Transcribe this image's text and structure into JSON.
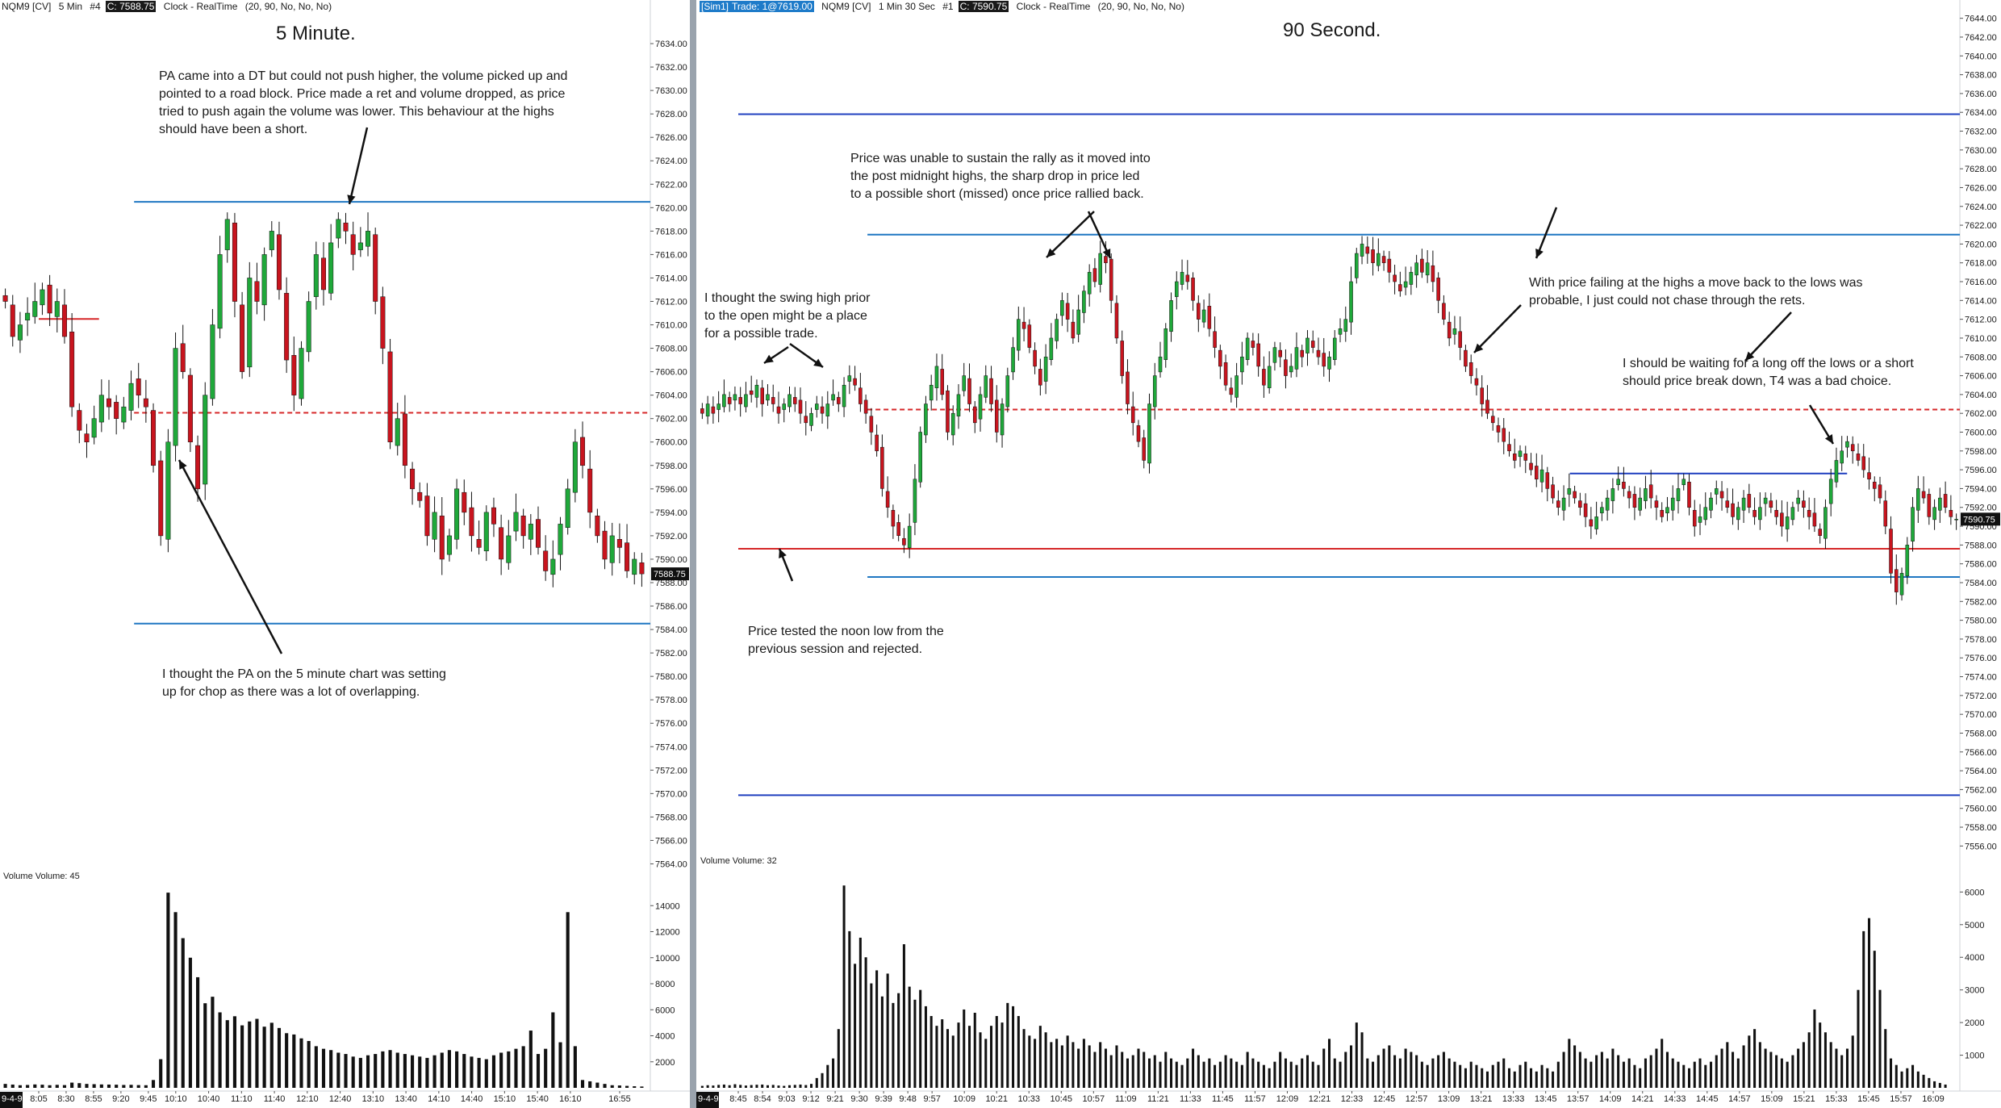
{
  "chart_data": [
    {
      "type": "candlestick",
      "header": {
        "instrument": "NQM9 [CV]",
        "interval": "5 Min",
        "bar_count": "#4",
        "last_price": "C: 7588.75",
        "clock": "Clock - RealTime",
        "params": "(20, 90, No, No, No)"
      },
      "title": "5 Minute.",
      "price_ticks": [
        "7634.00",
        "7632.00",
        "7630.00",
        "7628.00",
        "7626.00",
        "7624.00",
        "7622.00",
        "7620.00",
        "7618.00",
        "7616.00",
        "7614.00",
        "7612.00",
        "7610.00",
        "7608.00",
        "7606.00",
        "7604.00",
        "7602.00",
        "7600.00",
        "7598.00",
        "7596.00",
        "7594.00",
        "7592.00",
        "7590.00",
        "7588.00",
        "7586.00",
        "7584.00",
        "7582.00",
        "7580.00",
        "7578.00",
        "7576.00",
        "7574.00",
        "7572.00",
        "7570.00",
        "7568.00",
        "7566.00",
        "7564.00"
      ],
      "ylim": [
        7563,
        7636
      ],
      "last_price_label": "7588.75",
      "levels": [
        {
          "price": 7620.5,
          "color": "#1f77c2",
          "style": "solid",
          "from_time": "9:32"
        },
        {
          "price": 7584.5,
          "color": "#1f77c2",
          "style": "solid",
          "from_time": "9:32"
        },
        {
          "price": 7602.5,
          "color": "#d62728",
          "style": "dashed",
          "from_time": "9:32"
        },
        {
          "price": 7610.5,
          "color": "#d62728",
          "style": "solid",
          "from_time": "8:05",
          "to_time": "9:00"
        }
      ],
      "time_ticks": [
        "8:05",
        "8:30",
        "8:55",
        "9:20",
        "9:45",
        "10:10",
        "10:40",
        "11:10",
        "11:40",
        "12:10",
        "12:40",
        "13:10",
        "13:40",
        "14:10",
        "14:40",
        "15:10",
        "15:40",
        "16:10",
        "16:55"
      ],
      "date_label": "9-4-9",
      "volume_label": "Volume  Volume: 45",
      "volume_ticks": [
        "14000",
        "12000",
        "10000",
        "8000",
        "6000",
        "4000",
        "2000"
      ],
      "volume_max": 16000,
      "closes": [
        7612,
        7609,
        7610,
        7611,
        7612,
        7613,
        7611,
        7612,
        7609,
        7603,
        7601,
        7600,
        7602,
        7604,
        7603,
        7602,
        7603,
        7605,
        7604,
        7603,
        7598,
        7592,
        7600,
        7608,
        7606,
        7600,
        7596,
        7604,
        7610,
        7616,
        7619,
        7612,
        7606,
        7614,
        7612,
        7616,
        7618,
        7613,
        7607,
        7604,
        7608,
        7612,
        7616,
        7613,
        7617,
        7619,
        7618,
        7616,
        7617,
        7618,
        7612,
        7608,
        7600,
        7602,
        7598,
        7596,
        7595,
        7592,
        7594,
        7590,
        7592,
        7596,
        7594,
        7592,
        7591,
        7594,
        7593,
        7590,
        7592,
        7594,
        7592,
        7593,
        7591,
        7589,
        7590,
        7593,
        7596,
        7600,
        7598,
        7594,
        7592,
        7590,
        7592,
        7591,
        7589,
        7590,
        7588.75
      ],
      "volumes": [
        300,
        250,
        200,
        220,
        260,
        240,
        200,
        230,
        210,
        400,
        360,
        300,
        280,
        260,
        250,
        240,
        220,
        230,
        210,
        200,
        600,
        2200,
        15000,
        13500,
        11500,
        10000,
        8500,
        6500,
        7000,
        5800,
        5200,
        5500,
        4800,
        5100,
        5300,
        4700,
        5000,
        4600,
        4200,
        4100,
        3800,
        3600,
        3200,
        3000,
        2900,
        2700,
        2600,
        2400,
        2300,
        2500,
        2600,
        2800,
        2900,
        2700,
        2600,
        2500,
        2400,
        2300,
        2500,
        2700,
        2900,
        2800,
        2600,
        2400,
        2300,
        2200,
        2500,
        2700,
        2800,
        3000,
        3200,
        4400,
        2600,
        3000,
        5800,
        3500,
        13500,
        3200,
        600,
        500,
        400,
        300,
        200,
        180,
        150,
        120,
        100
      ]
    },
    {
      "type": "candlestick",
      "header": {
        "account": "[Sim1]",
        "trade": "Trade: 1@7619.00",
        "instrument": "NQM9 [CV]",
        "interval": "1 Min 30 Sec",
        "bar_count": "#1",
        "last_price": "C: 7590.75",
        "clock": "Clock - RealTime",
        "params": "(20, 90, No, No, No)"
      },
      "title": "90 Second.",
      "price_ticks": [
        "7644.00",
        "7642.00",
        "7640.00",
        "7638.00",
        "7636.00",
        "7634.00",
        "7632.00",
        "7630.00",
        "7628.00",
        "7626.00",
        "7624.00",
        "7622.00",
        "7620.00",
        "7618.00",
        "7616.00",
        "7614.00",
        "7612.00",
        "7610.00",
        "7608.00",
        "7606.00",
        "7604.00",
        "7602.00",
        "7600.00",
        "7598.00",
        "7596.00",
        "7594.00",
        "7592.00",
        "7590.00",
        "7588.00",
        "7586.00",
        "7584.00",
        "7582.00",
        "7580.00",
        "7578.00",
        "7576.00",
        "7574.00",
        "7572.00",
        "7570.00",
        "7568.00",
        "7566.00",
        "7564.00",
        "7562.00",
        "7560.00",
        "7558.00",
        "7556.00"
      ],
      "ylim": [
        7555,
        7645
      ],
      "last_price_label": "7590.75",
      "levels": [
        {
          "price": 7633.8,
          "color": "#1f3fbf",
          "style": "solid",
          "from_time": "8:45"
        },
        {
          "price": 7621.0,
          "color": "#1f77c2",
          "style": "solid",
          "from_time": "9:33"
        },
        {
          "price": 7602.4,
          "color": "#d62728",
          "style": "dashed",
          "from_time": "9:33"
        },
        {
          "price": 7595.6,
          "color": "#1f3fbf",
          "style": "solid",
          "from_time": "13:54",
          "to_time": "15:37"
        },
        {
          "price": 7587.6,
          "color": "#d62728",
          "style": "solid",
          "from_time": "8:45"
        },
        {
          "price": 7584.6,
          "color": "#1f77c2",
          "style": "solid",
          "from_time": "9:33"
        },
        {
          "price": 7561.4,
          "color": "#1f3fbf",
          "style": "solid",
          "from_time": "8:45"
        }
      ],
      "time_ticks": [
        "8:45",
        "8:54",
        "9:03",
        "9:12",
        "9:21",
        "9:30",
        "9:39",
        "9:48",
        "9:57",
        "10:09",
        "10:21",
        "10:33",
        "10:45",
        "10:57",
        "11:09",
        "11:21",
        "11:33",
        "11:45",
        "11:57",
        "12:09",
        "12:21",
        "12:33",
        "12:45",
        "12:57",
        "13:09",
        "13:21",
        "13:33",
        "13:45",
        "13:57",
        "14:09",
        "14:21",
        "14:33",
        "14:45",
        "14:57",
        "15:09",
        "15:21",
        "15:33",
        "15:45",
        "15:57",
        "16:09"
      ],
      "date_label": "9-4-9",
      "volume_label": "Volume  Volume: 32",
      "volume_ticks": [
        "6000",
        "5000",
        "4000",
        "3000",
        "2000",
        "1000"
      ],
      "volume_max": 6800,
      "closes": [
        7602,
        7603,
        7602,
        7603,
        7604,
        7603,
        7604,
        7603,
        7604,
        7604,
        7605,
        7603,
        7604,
        7603,
        7602,
        7603,
        7604,
        7603,
        7602,
        7601,
        7602,
        7603,
        7602,
        7603,
        7604,
        7603,
        7605,
        7606,
        7605,
        7603,
        7602,
        7600,
        7598,
        7594,
        7592,
        7590,
        7589,
        7588,
        7590,
        7595,
        7600,
        7603,
        7605,
        7607,
        7604,
        7600,
        7602,
        7604,
        7606,
        7603,
        7601,
        7604,
        7606,
        7603,
        7600,
        7603,
        7606,
        7609,
        7612,
        7611,
        7609,
        7607,
        7605,
        7608,
        7610,
        7612,
        7614,
        7612,
        7610,
        7613,
        7615,
        7617,
        7616,
        7619,
        7618,
        7614,
        7610,
        7606,
        7603,
        7601,
        7599,
        7597,
        7603,
        7606,
        7608,
        7611,
        7614,
        7616,
        7617,
        7616,
        7614,
        7612,
        7613,
        7611,
        7609,
        7607,
        7605,
        7604,
        7606,
        7608,
        7610,
        7609,
        7607,
        7605,
        7607,
        7609,
        7608,
        7606,
        7607,
        7609,
        7608,
        7610,
        7609,
        7608,
        7607,
        7608,
        7610,
        7611,
        7612,
        7616,
        7619,
        7620,
        7619,
        7618,
        7619,
        7618,
        7617,
        7616,
        7615,
        7616,
        7617,
        7618,
        7617,
        7618,
        7616,
        7614,
        7612,
        7610,
        7611,
        7609,
        7607,
        7606,
        7605,
        7603,
        7602,
        7601,
        7600,
        7599,
        7598,
        7597,
        7598,
        7597,
        7596,
        7595,
        7596,
        7594,
        7593,
        7592,
        7593,
        7594,
        7593,
        7592,
        7591,
        7590,
        7591,
        7592,
        7593,
        7594,
        7595,
        7594,
        7593,
        7592,
        7593,
        7594,
        7593,
        7592,
        7591,
        7592,
        7593,
        7594,
        7595,
        7592,
        7590,
        7591,
        7592,
        7593,
        7594,
        7593,
        7592,
        7591,
        7592,
        7593,
        7592,
        7591,
        7592,
        7593,
        7592,
        7591,
        7590,
        7591,
        7592,
        7593,
        7592,
        7591,
        7590,
        7589,
        7592,
        7595,
        7597,
        7598,
        7599,
        7598,
        7597,
        7596,
        7595,
        7594,
        7593,
        7590,
        7585,
        7583,
        7585,
        7588,
        7592,
        7594,
        7593,
        7591,
        7592,
        7593,
        7592,
        7591,
        7590.75
      ],
      "volumes": [
        60,
        80,
        70,
        90,
        100,
        80,
        110,
        90,
        70,
        85,
        95,
        100,
        80,
        90,
        70,
        60,
        80,
        90,
        100,
        85,
        120,
        300,
        450,
        700,
        900,
        1800,
        6200,
        4800,
        3800,
        4600,
        4000,
        3200,
        3600,
        2800,
        3500,
        2600,
        2900,
        4400,
        3100,
        2700,
        3000,
        2500,
        2200,
        1900,
        2100,
        1800,
        1600,
        2000,
        2400,
        1900,
        2300,
        1700,
        1500,
        1900,
        2200,
        2000,
        2600,
        2500,
        2200,
        1800,
        1600,
        1500,
        1900,
        1700,
        1400,
        1500,
        1300,
        1600,
        1400,
        1200,
        1500,
        1300,
        1100,
        1400,
        1200,
        1000,
        1300,
        1100,
        900,
        1000,
        1200,
        1100,
        900,
        1000,
        800,
        1100,
        900,
        800,
        700,
        900,
        1200,
        1000,
        800,
        900,
        700,
        800,
        1000,
        900,
        800,
        700,
        1100,
        900,
        800,
        700,
        600,
        800,
        1100,
        900,
        800,
        700,
        900,
        1000,
        800,
        700,
        1200,
        1500,
        900,
        800,
        1100,
        1300,
        2000,
        1700,
        900,
        800,
        1000,
        1200,
        1300,
        1000,
        900,
        1200,
        1100,
        1000,
        800,
        700,
        900,
        1000,
        1100,
        900,
        800,
        700,
        600,
        800,
        700,
        600,
        500,
        700,
        800,
        900,
        600,
        500,
        700,
        800,
        600,
        500,
        700,
        600,
        500,
        800,
        1100,
        1500,
        1300,
        1100,
        900,
        800,
        1000,
        1100,
        900,
        1200,
        1000,
        800,
        900,
        700,
        600,
        900,
        1000,
        1200,
        1500,
        1100,
        900,
        800,
        700,
        600,
        800,
        900,
        700,
        800,
        1000,
        1200,
        1400,
        1100,
        900,
        1300,
        1600,
        1800,
        1400,
        1200,
        1100,
        1000,
        900,
        800,
        1000,
        1200,
        1400,
        1700,
        2400,
        2000,
        1700,
        1400,
        1200,
        1000,
        1200,
        1600,
        3000,
        4800,
        5200,
        4200,
        3000,
        1800,
        900,
        700,
        500,
        600,
        700,
        500,
        400,
        300,
        200,
        150,
        100
      ]
    }
  ],
  "annotations": {
    "left": [
      {
        "id": "pa-dt",
        "lines": [
          "PA came into a DT but could not push higher, the volume picked up and",
          "pointed to a road block.  Price made a ret and volume dropped, as price",
          "tried to push again the volume was lower.  This behaviour at the highs",
          "should have been a short."
        ]
      },
      {
        "id": "chop",
        "lines": [
          "I thought the PA on the 5 minute chart was setting",
          "up for chop as there was a lot of overlapping."
        ]
      }
    ],
    "right": [
      {
        "id": "rally",
        "lines": [
          "Price was unable to sustain the rally as it moved into",
          "the post midnight highs, the sharp drop in price led",
          "to a possible short (missed) once price rallied back."
        ]
      },
      {
        "id": "swing",
        "lines": [
          "I thought the swing high prior",
          "to the open might be a place",
          "for a possible trade."
        ]
      },
      {
        "id": "highs",
        "lines": [
          "With price failing at the highs a move back to the lows was",
          "probable, I just could not chase through the rets."
        ]
      },
      {
        "id": "waiting",
        "lines": [
          "I should be waiting for a long off the lows or a short",
          "should price break down, T4 was a bad choice."
        ]
      },
      {
        "id": "noon",
        "lines": [
          "Price tested the noon low from the",
          "previous session and rejected."
        ]
      }
    ]
  },
  "colors": {
    "bull": "#1fa83a",
    "bear": "#c8141e",
    "wick": "#111111",
    "volume": "#111111",
    "divider": "#9aa3ad"
  }
}
